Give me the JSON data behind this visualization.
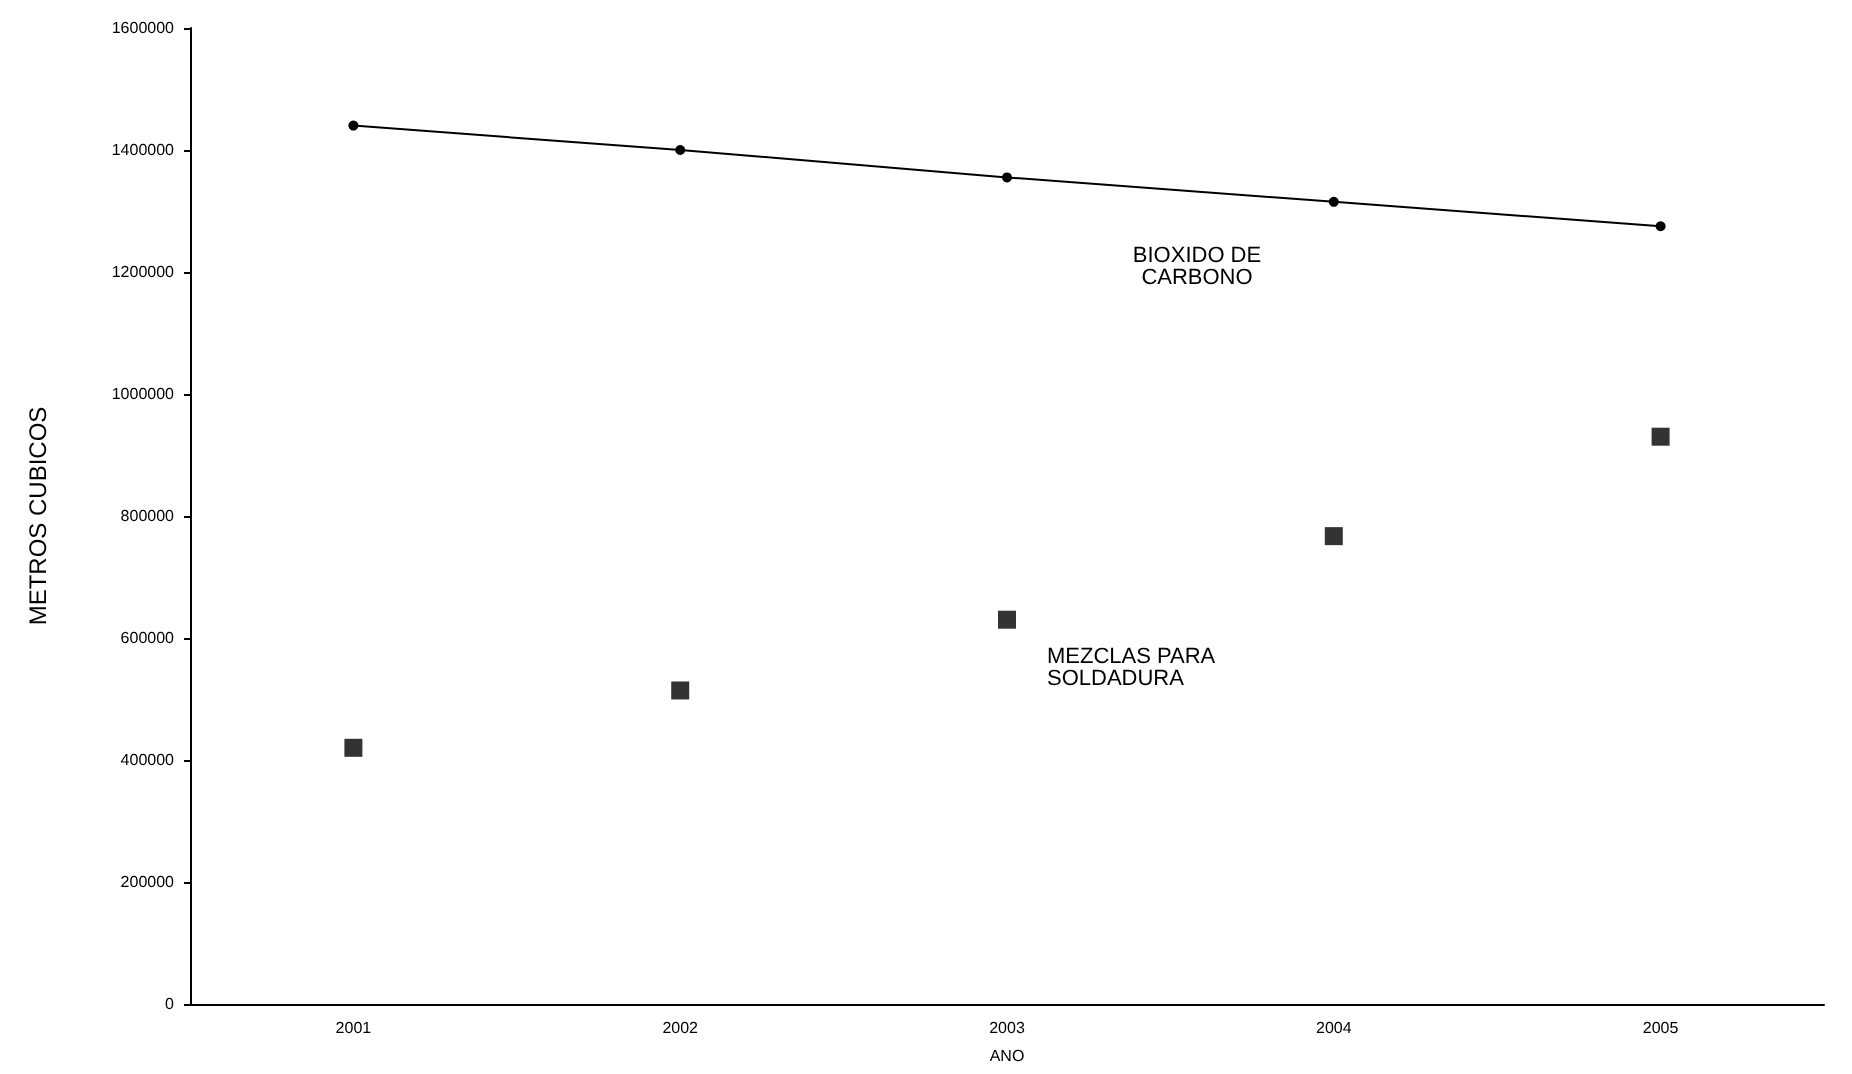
{
  "chart_data": {
    "type": "line",
    "xlabel": "ANO",
    "ylabel": "METROS CUBICOS",
    "categories": [
      "2001",
      "2002",
      "2003",
      "2004",
      "2005"
    ],
    "series": [
      {
        "name": "BIOXIDO DE\nCARBONO",
        "color": "#000000",
        "marker": "circle",
        "values": [
          1440000,
          1400000,
          1355000,
          1315000,
          1275000
        ]
      },
      {
        "name": "MEZCLAS PARA\nSOLDADURA",
        "type": "scatter",
        "color": "#000000",
        "marker": "square",
        "values": [
          420000,
          514000,
          630000,
          767000,
          930000
        ]
      }
    ],
    "ylim": [
      0,
      1600000
    ],
    "yticks": [
      0,
      200000,
      400000,
      600000,
      800000,
      1000000,
      1200000,
      1400000,
      1600000
    ],
    "grid": false,
    "legend": false
  }
}
